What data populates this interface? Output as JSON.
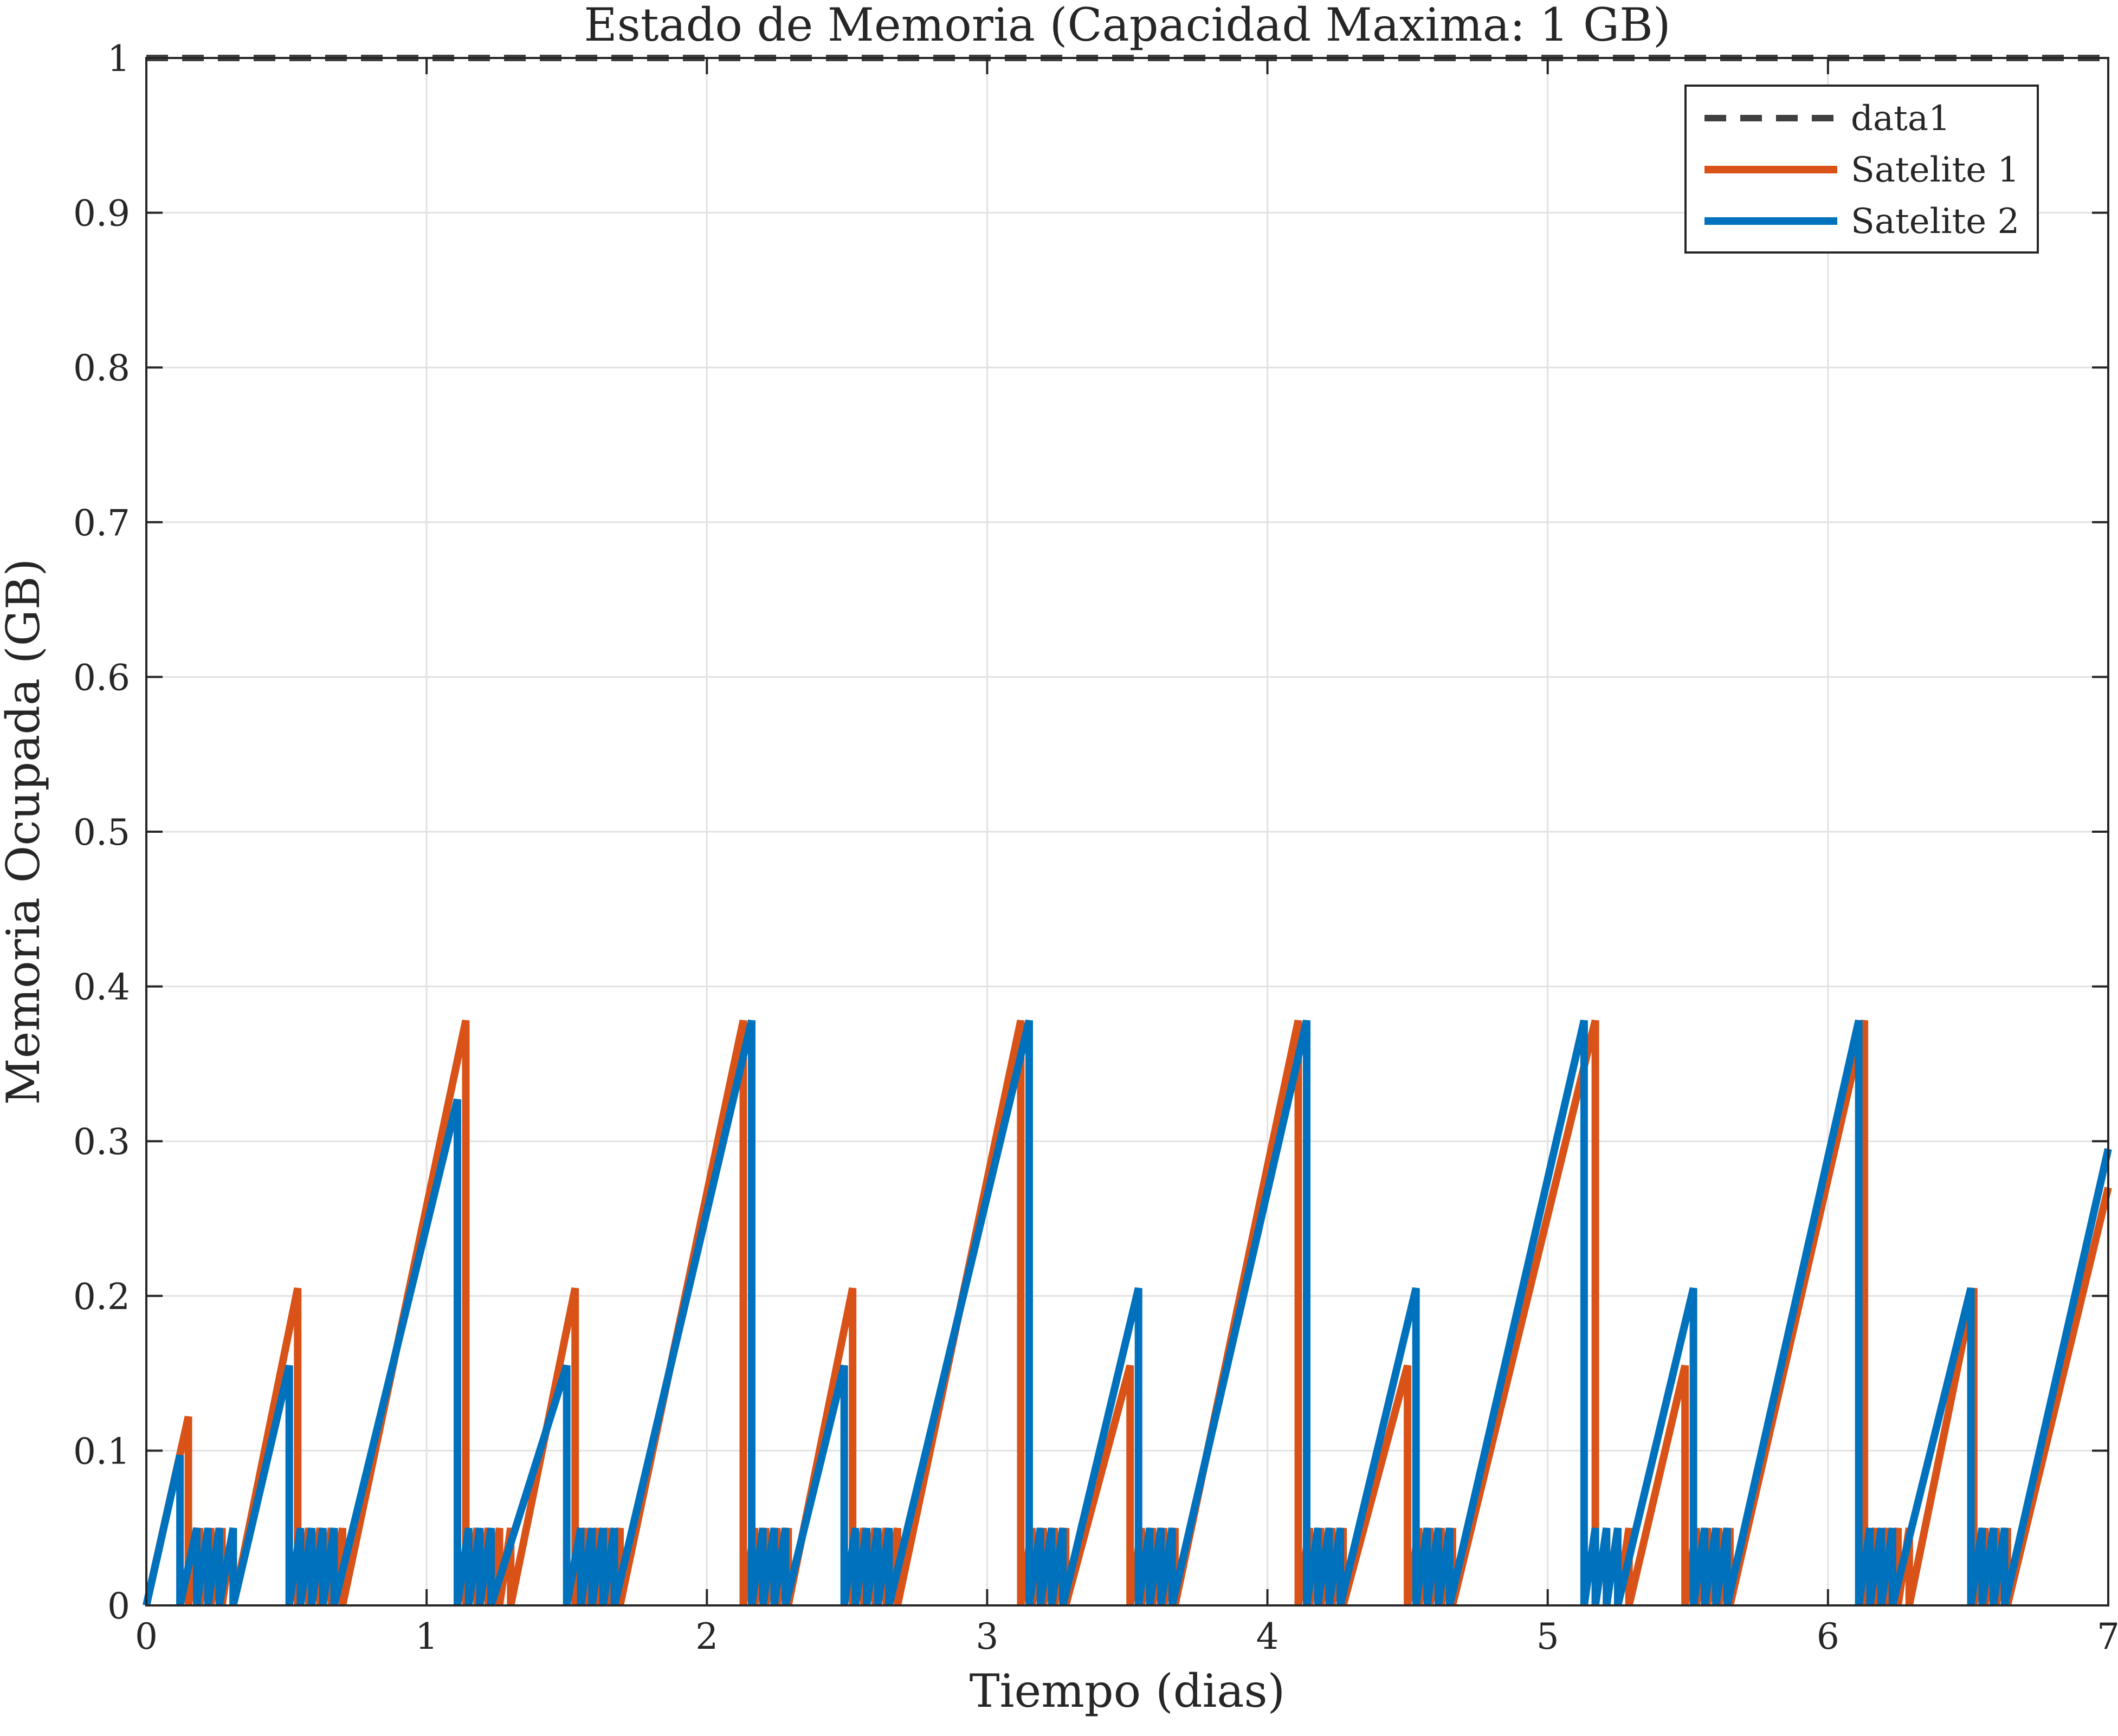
{
  "chart_data": {
    "type": "line",
    "title": "Estado de Memoria (Capacidad Maxima: 1 GB)",
    "xlabel": "Tiempo (dias)",
    "ylabel": "Memoria Ocupada (GB)",
    "xlim": [
      0,
      7
    ],
    "ylim": [
      0,
      1
    ],
    "xticks": [
      0,
      1,
      2,
      3,
      4,
      5,
      6,
      7
    ],
    "yticks": [
      0,
      0.1,
      0.2,
      0.3,
      0.4,
      0.5,
      0.6,
      0.7,
      0.8,
      0.9,
      1
    ],
    "xtick_labels": [
      "0",
      "1",
      "2",
      "3",
      "4",
      "5",
      "6",
      "7"
    ],
    "ytick_labels": [
      "0",
      "0.1",
      "0.2",
      "0.3",
      "0.4",
      "0.5",
      "0.6",
      "0.7",
      "0.8",
      "0.9",
      "1"
    ],
    "grid": true,
    "legend_position": "top-right",
    "series": [
      {
        "name": "data1",
        "color": "#404040",
        "dash": "dashed",
        "x": [
          0,
          7
        ],
        "y": [
          1,
          1
        ]
      },
      {
        "name": "Satelite 1",
        "color": "#D95319",
        "dash": "solid",
        "x": [
          0,
          0.15,
          0.15,
          0.19,
          0.19,
          0.23,
          0.23,
          0.27,
          0.27,
          0.31,
          0.31,
          0.54,
          0.54,
          0.58,
          0.58,
          0.62,
          0.62,
          0.66,
          0.66,
          0.7,
          0.7,
          1.14,
          1.14,
          1.18,
          1.18,
          1.22,
          1.22,
          1.26,
          1.26,
          1.3,
          1.3,
          1.53,
          1.53,
          1.57,
          1.57,
          1.61,
          1.61,
          1.65,
          1.65,
          1.69,
          1.69,
          2.13,
          2.13,
          2.17,
          2.17,
          2.21,
          2.21,
          2.25,
          2.25,
          2.29,
          2.29,
          2.52,
          2.52,
          2.56,
          2.56,
          2.6,
          2.6,
          2.64,
          2.64,
          2.68,
          2.68,
          3.12,
          3.12,
          3.16,
          3.16,
          3.2,
          3.2,
          3.24,
          3.24,
          3.28,
          3.28,
          3.51,
          3.51,
          3.55,
          3.55,
          3.59,
          3.59,
          3.63,
          3.63,
          3.67,
          3.67,
          4.11,
          4.11,
          4.15,
          4.15,
          4.19,
          4.19,
          4.23,
          4.23,
          4.27,
          4.27,
          4.5,
          4.5,
          4.54,
          4.54,
          4.58,
          4.58,
          4.62,
          4.62,
          4.66,
          4.66,
          5.17,
          5.17,
          5.21,
          5.21,
          5.25,
          5.25,
          5.29,
          5.29,
          5.49,
          5.49,
          5.53,
          5.53,
          5.57,
          5.57,
          5.61,
          5.61,
          5.65,
          5.65,
          6.13,
          6.13,
          6.17,
          6.17,
          6.21,
          6.21,
          6.25,
          6.25,
          6.29,
          6.29,
          6.52,
          6.52,
          6.56,
          6.56,
          6.6,
          6.6,
          6.64,
          6.64,
          7.0
        ],
        "y": [
          0,
          0.122,
          0,
          0.05,
          0,
          0.05,
          0,
          0.05,
          0,
          0.05,
          0,
          0.205,
          0,
          0.05,
          0,
          0.05,
          0,
          0.05,
          0,
          0.05,
          0,
          0.378,
          0,
          0.05,
          0,
          0.05,
          0,
          0.05,
          0,
          0.05,
          0,
          0.205,
          0,
          0.05,
          0,
          0.05,
          0,
          0.05,
          0,
          0.05,
          0,
          0.378,
          0,
          0.05,
          0,
          0.05,
          0,
          0.05,
          0,
          0.05,
          0,
          0.205,
          0,
          0.05,
          0,
          0.05,
          0,
          0.05,
          0,
          0.05,
          0,
          0.378,
          0,
          0.05,
          0,
          0.05,
          0,
          0.05,
          0,
          0.05,
          0,
          0.155,
          0,
          0.05,
          0,
          0.05,
          0,
          0.05,
          0,
          0.05,
          0,
          0.378,
          0,
          0.05,
          0,
          0.05,
          0,
          0.05,
          0,
          0.05,
          0,
          0.155,
          0,
          0.05,
          0,
          0.05,
          0,
          0.05,
          0,
          0.05,
          0,
          0.378,
          0,
          0.05,
          0,
          0.05,
          0,
          0.05,
          0,
          0.155,
          0,
          0.05,
          0,
          0.05,
          0,
          0.05,
          0,
          0.05,
          0,
          0.378,
          0,
          0.05,
          0,
          0.05,
          0,
          0.05,
          0,
          0.05,
          0,
          0.205,
          0,
          0.05,
          0,
          0.05,
          0,
          0.05,
          0,
          0.27
        ]
      },
      {
        "name": "Satelite 2",
        "color": "#0072BD",
        "dash": "solid",
        "x": [
          0,
          0.12,
          0.12,
          0.18,
          0.18,
          0.22,
          0.22,
          0.26,
          0.26,
          0.31,
          0.31,
          0.51,
          0.51,
          0.55,
          0.55,
          0.59,
          0.59,
          0.63,
          0.63,
          0.67,
          0.67,
          1.11,
          1.11,
          1.15,
          1.15,
          1.19,
          1.19,
          1.23,
          1.23,
          1.5,
          1.5,
          1.55,
          1.55,
          1.59,
          1.59,
          1.63,
          1.63,
          1.67,
          1.67,
          2.16,
          2.16,
          2.2,
          2.2,
          2.24,
          2.24,
          2.28,
          2.28,
          2.49,
          2.49,
          2.53,
          2.53,
          2.57,
          2.57,
          2.61,
          2.61,
          2.65,
          2.65,
          3.15,
          3.15,
          3.19,
          3.19,
          3.23,
          3.23,
          3.27,
          3.27,
          3.54,
          3.54,
          3.58,
          3.58,
          3.62,
          3.62,
          3.66,
          3.66,
          4.14,
          4.14,
          4.18,
          4.18,
          4.22,
          4.22,
          4.26,
          4.26,
          4.53,
          4.53,
          4.57,
          4.57,
          4.61,
          4.61,
          4.65,
          4.65,
          5.13,
          5.13,
          5.17,
          5.17,
          5.21,
          5.21,
          5.25,
          5.25,
          5.52,
          5.52,
          5.56,
          5.56,
          5.6,
          5.6,
          5.64,
          5.64,
          6.11,
          6.11,
          6.15,
          6.15,
          6.19,
          6.19,
          6.23,
          6.23,
          6.51,
          6.51,
          6.55,
          6.55,
          6.59,
          6.59,
          6.63,
          6.63,
          7.0
        ],
        "y": [
          0,
          0.097,
          0,
          0.05,
          0,
          0.05,
          0,
          0.05,
          0,
          0.05,
          0,
          0.155,
          0,
          0.05,
          0,
          0.05,
          0,
          0.05,
          0,
          0.05,
          0,
          0.327,
          0,
          0.05,
          0,
          0.05,
          0,
          0.05,
          0,
          0.155,
          0,
          0.05,
          0,
          0.05,
          0,
          0.05,
          0,
          0.05,
          0,
          0.378,
          0,
          0.05,
          0,
          0.05,
          0,
          0.05,
          0,
          0.155,
          0,
          0.05,
          0,
          0.05,
          0,
          0.05,
          0,
          0.05,
          0,
          0.378,
          0,
          0.05,
          0,
          0.05,
          0,
          0.05,
          0,
          0.205,
          0,
          0.05,
          0,
          0.05,
          0,
          0.05,
          0,
          0.378,
          0,
          0.05,
          0,
          0.05,
          0,
          0.05,
          0,
          0.205,
          0,
          0.05,
          0,
          0.05,
          0,
          0.05,
          0,
          0.378,
          0,
          0.05,
          0,
          0.05,
          0,
          0.05,
          0,
          0.205,
          0,
          0.05,
          0,
          0.05,
          0,
          0.05,
          0,
          0.378,
          0,
          0.05,
          0,
          0.05,
          0,
          0.05,
          0,
          0.205,
          0,
          0.05,
          0,
          0.05,
          0,
          0.05,
          0,
          0.295
        ]
      }
    ]
  }
}
